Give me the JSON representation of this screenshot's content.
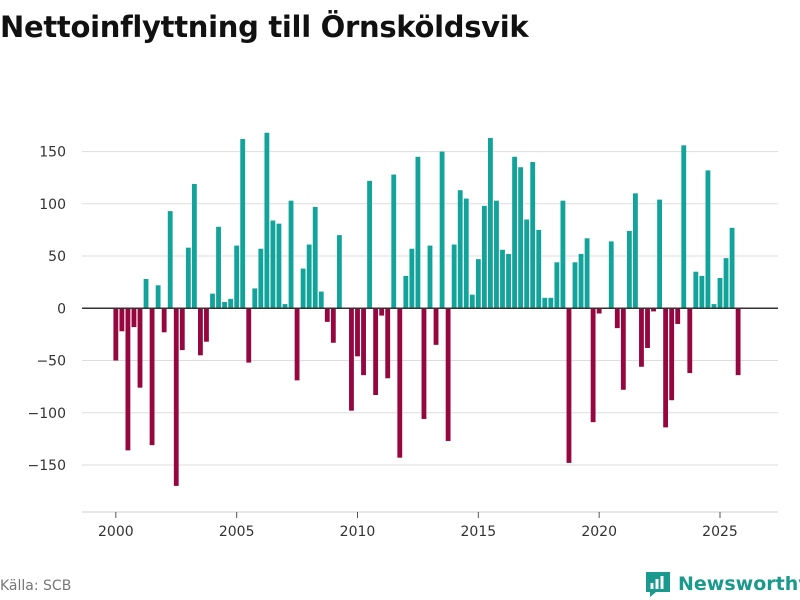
{
  "chart_data": {
    "type": "bar",
    "title": "Nettoinflyttning till Örnsköldsvik",
    "xlabel": "",
    "ylabel": "",
    "xlim": [
      1998.6,
      2027.4
    ],
    "ylim": [
      -195,
      185
    ],
    "yticks": [
      -150,
      -100,
      -50,
      0,
      50,
      100,
      150
    ],
    "ytick_labels": [
      "−150",
      "−100",
      "−50",
      "0",
      "50",
      "100",
      "150"
    ],
    "xticks": [
      2000,
      2005,
      2010,
      2015,
      2020,
      2025
    ],
    "xtick_labels": [
      "2000",
      "2005",
      "2010",
      "2015",
      "2020",
      "2025"
    ],
    "grid": true,
    "colors": {
      "positive": "#12a39a",
      "negative": "#96063f",
      "grid": "#dddddd",
      "zero_line": "#333333"
    },
    "x": [
      2000.0,
      2000.25,
      2000.5,
      2000.75,
      2001.0,
      2001.25,
      2001.5,
      2001.75,
      2002.0,
      2002.25,
      2002.5,
      2002.75,
      2003.0,
      2003.25,
      2003.5,
      2003.75,
      2004.0,
      2004.25,
      2004.5,
      2004.75,
      2005.0,
      2005.25,
      2005.5,
      2005.75,
      2006.0,
      2006.25,
      2006.5,
      2006.75,
      2007.0,
      2007.25,
      2007.5,
      2007.75,
      2008.0,
      2008.25,
      2008.5,
      2008.75,
      2009.0,
      2009.25,
      2009.5,
      2009.75,
      2010.0,
      2010.25,
      2010.5,
      2010.75,
      2011.0,
      2011.25,
      2011.5,
      2011.75,
      2012.0,
      2012.25,
      2012.5,
      2012.75,
      2013.0,
      2013.25,
      2013.5,
      2013.75,
      2014.0,
      2014.25,
      2014.5,
      2014.75,
      2015.0,
      2015.25,
      2015.5,
      2015.75,
      2016.0,
      2016.25,
      2016.5,
      2016.75,
      2017.0,
      2017.25,
      2017.5,
      2017.75,
      2018.0,
      2018.25,
      2018.5,
      2018.75,
      2019.0,
      2019.25,
      2019.5,
      2019.75,
      2020.0,
      2020.25,
      2020.5,
      2020.75,
      2021.0,
      2021.25,
      2021.5,
      2021.75,
      2022.0,
      2022.25,
      2022.5,
      2022.75,
      2023.0,
      2023.25,
      2023.5,
      2023.75,
      2024.0,
      2024.25,
      2024.5,
      2024.75,
      2025.0,
      2025.25,
      2025.5,
      2025.75
    ],
    "values": [
      -50,
      -22,
      -136,
      -18,
      -76,
      28,
      -131,
      22,
      -23,
      93,
      -170,
      -40,
      58,
      119,
      -45,
      -32,
      14,
      78,
      6,
      9,
      60,
      162,
      -52,
      19,
      57,
      168,
      84,
      81,
      4,
      103,
      -69,
      38,
      61,
      97,
      16,
      -13,
      -33,
      70,
      null,
      -98,
      -46,
      -64,
      122,
      -83,
      -7,
      -67,
      128,
      -143,
      31,
      57,
      145,
      -106,
      60,
      -35,
      150,
      -127,
      61,
      113,
      105,
      13,
      47,
      98,
      163,
      103,
      56,
      52,
      145,
      135,
      85,
      140,
      75,
      10,
      10,
      44,
      103,
      -148,
      44,
      52,
      67,
      -109,
      -5,
      null,
      64,
      -19,
      -78,
      74,
      110,
      -56,
      -38,
      -3,
      104,
      -114,
      -88,
      -15,
      156,
      -62,
      35,
      31,
      132,
      4,
      29,
      48,
      77,
      -64
    ]
  },
  "footer": {
    "source": "Källa: SCB",
    "brand": "Newsworthy"
  }
}
